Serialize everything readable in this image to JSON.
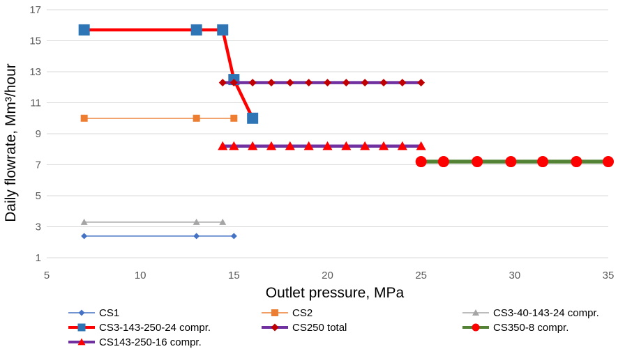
{
  "chart_data": {
    "type": "line",
    "title": "",
    "xlabel": "Outlet pressure, MPa",
    "ylabel": "Daily flowrate, Mm³/hour",
    "xlim": [
      5,
      35
    ],
    "ylim": [
      1,
      17
    ],
    "xticks": [
      5,
      10,
      15,
      20,
      25,
      30,
      35
    ],
    "yticks": [
      1,
      3,
      5,
      7,
      9,
      11,
      13,
      15,
      17
    ],
    "grid": "horizontal",
    "legend_position": "bottom",
    "series": [
      {
        "name": "CS1",
        "color": "#4472C4",
        "marker": "diamond",
        "x": [
          7,
          13,
          15
        ],
        "y": [
          2.4,
          2.4,
          2.4
        ]
      },
      {
        "name": "CS2",
        "color": "#ED7D31",
        "marker": "square",
        "x": [
          7,
          13,
          15
        ],
        "y": [
          10,
          10,
          10
        ]
      },
      {
        "name": "CS3-40-143-24 compr.",
        "color": "#A5A5A5",
        "marker": "triangle",
        "x": [
          7,
          13,
          14.4
        ],
        "y": [
          3.3,
          3.3,
          3.3
        ]
      },
      {
        "name": "CS3-143-250-24 compr.",
        "color": "#FF0000",
        "marker_color": "#2E75B6",
        "marker": "square",
        "x": [
          7,
          13,
          14.4,
          15,
          16
        ],
        "y": [
          15.7,
          15.7,
          15.7,
          12.5,
          10
        ]
      },
      {
        "name": "CS250 total",
        "color": "#7030A0",
        "marker_color": "#C00000",
        "marker": "diamond",
        "x": [
          14.4,
          15,
          16,
          17,
          18,
          19,
          20,
          21,
          22,
          23,
          24,
          25
        ],
        "y": [
          12.3,
          12.3,
          12.3,
          12.3,
          12.3,
          12.3,
          12.3,
          12.3,
          12.3,
          12.3,
          12.3,
          12.3
        ]
      },
      {
        "name": "CS350-8 compr.",
        "color": "#548235",
        "marker_color": "#FF0000",
        "marker": "circle",
        "x": [
          25,
          26.2,
          28,
          29.8,
          31.5,
          33.3,
          35
        ],
        "y": [
          7.2,
          7.2,
          7.2,
          7.2,
          7.2,
          7.2,
          7.2
        ]
      },
      {
        "name": "CS143-250-16 compr.",
        "color": "#7030A0",
        "marker_color": "#FF0000",
        "marker": "triangle",
        "x": [
          14.4,
          15,
          16,
          17,
          18,
          19,
          20,
          21,
          22,
          23,
          24,
          25
        ],
        "y": [
          8.2,
          8.2,
          8.2,
          8.2,
          8.2,
          8.2,
          8.2,
          8.2,
          8.2,
          8.2,
          8.2,
          8.2
        ]
      }
    ]
  }
}
